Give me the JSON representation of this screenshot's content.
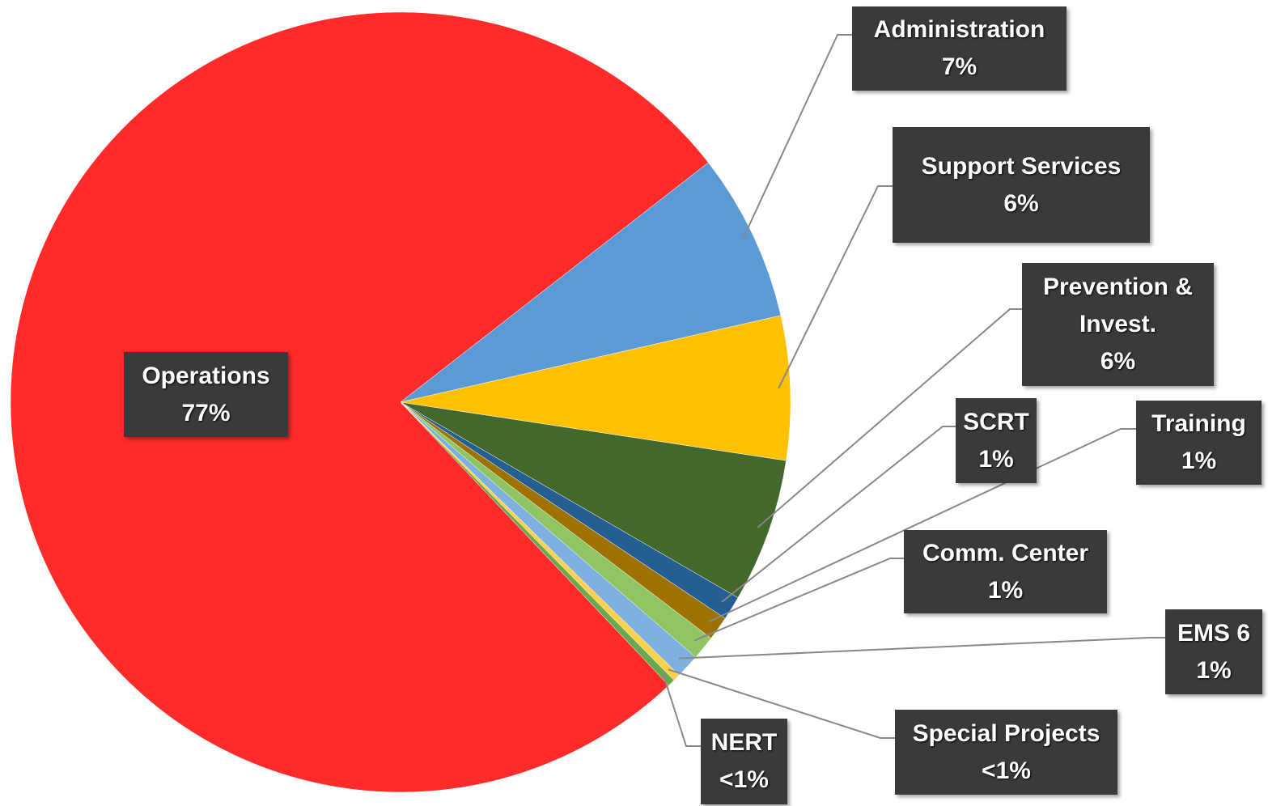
{
  "chart_data": {
    "type": "pie",
    "categories": [
      "Operations",
      "Administration",
      "Support Services",
      "Prevention & Invest.",
      "SCRT",
      "Training",
      "Comm. Center",
      "EMS 6",
      "Special Projects",
      "NERT"
    ],
    "values": [
      77,
      7,
      6,
      6,
      1,
      1,
      1,
      1,
      0.3,
      0.3
    ],
    "value_labels": [
      "77%",
      "7%",
      "6%",
      "6%",
      "1%",
      "1%",
      "1%",
      "1%",
      "<1%",
      "<1%"
    ],
    "colors": [
      "#ff2b2b",
      "#5b9bd5",
      "#ffc000",
      "#43682b",
      "#255e91",
      "#9e7200",
      "#8fc563",
      "#7fb1e0",
      "#ffd04a",
      "#6aa84f"
    ]
  }
}
